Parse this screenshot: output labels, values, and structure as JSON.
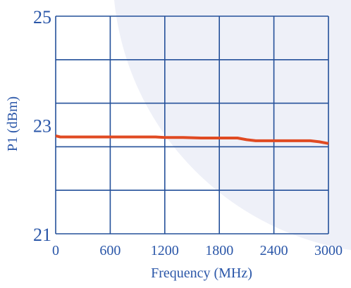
{
  "colors": {
    "background": "#ffffff",
    "panel_tint": "#eef0f8",
    "grid": "#24509a",
    "axis_text": "#2a56a8",
    "series": "#e04a22"
  },
  "chart_data": {
    "type": "line",
    "title": "",
    "xlabel": "Frequency (MHz)",
    "ylabel": "P1 (dBm)",
    "xlim": [
      0,
      3000
    ],
    "ylim": [
      21,
      25
    ],
    "xticks": [
      0,
      600,
      1200,
      1800,
      2400,
      3000
    ],
    "xtick_labels": [
      "0",
      "600",
      "1200",
      "1800",
      "2400",
      "3000"
    ],
    "yticks": [
      21,
      23,
      25
    ],
    "ytick_labels": [
      "21",
      "23",
      "25"
    ],
    "grid": true,
    "grid_x_step": 600,
    "grid_y_step": 0.8,
    "legend": "none",
    "series": [
      {
        "x": [
          0,
          50,
          100,
          300,
          600,
          900,
          1100,
          1200,
          1400,
          1600,
          1800,
          2000,
          2100,
          2200,
          2400,
          2600,
          2800,
          2900,
          3000
        ],
        "y": [
          22.8,
          22.78,
          22.78,
          22.78,
          22.78,
          22.78,
          22.78,
          22.77,
          22.77,
          22.76,
          22.76,
          22.76,
          22.73,
          22.71,
          22.71,
          22.71,
          22.71,
          22.69,
          22.66
        ]
      }
    ]
  }
}
